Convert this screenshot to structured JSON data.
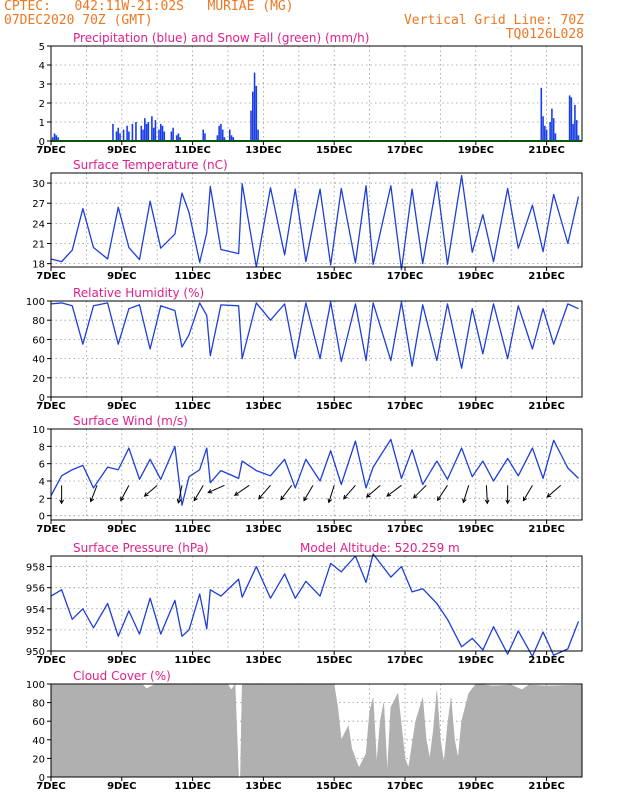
{
  "header": {
    "line1": "CPTEC:   042:11W-21:02S   MURIAE (MG)",
    "line2": "07DEC2020 70Z (GMT)",
    "grid_note": "Vertical Grid Line: 70Z",
    "code": "TQ0126L028"
  },
  "colors": {
    "header": "#ee7722",
    "title": "#e0208a",
    "precip": "#1a3ee6",
    "snow": "#1aa31a",
    "line": "#1f3fd8",
    "wind_arrow": "#000000",
    "cloud": "#b0b0b0"
  },
  "x_axis": {
    "ticks": [
      "7DEC",
      "9DEC",
      "11DEC",
      "13DEC",
      "15DEC",
      "17DEC",
      "19DEC",
      "21DEC"
    ],
    "start_day": 7,
    "end_day": 22
  },
  "chart_data": [
    {
      "id": "precip",
      "type": "bar",
      "title": "Precipitation (blue) and Snow Fall (green) (mm/h)",
      "ylim": [
        0,
        5
      ],
      "yticks": [
        "0",
        "1",
        "2",
        "3",
        "4",
        "5"
      ],
      "series": [
        {
          "name": "Precipitation",
          "color": "#1a3ee6",
          "x": [
            7.05,
            7.1,
            7.15,
            7.2,
            8.75,
            8.85,
            8.9,
            8.95,
            9.05,
            9.15,
            9.2,
            9.3,
            9.4,
            9.55,
            9.6,
            9.65,
            9.7,
            9.75,
            9.85,
            9.9,
            9.95,
            10.05,
            10.1,
            10.15,
            10.2,
            10.4,
            10.45,
            10.55,
            10.6,
            10.65,
            11.3,
            11.35,
            11.7,
            11.75,
            11.8,
            11.85,
            11.9,
            12.05,
            12.1,
            12.15,
            12.65,
            12.7,
            12.75,
            12.8,
            12.85,
            20.85,
            20.9,
            20.95,
            21.0,
            21.1,
            21.15,
            21.2,
            21.25,
            21.65,
            21.7,
            21.75,
            21.8,
            21.85,
            21.9
          ],
          "values": [
            0.2,
            0.4,
            0.3,
            0.2,
            0.9,
            0.5,
            0.7,
            0.4,
            0.6,
            0.8,
            0.5,
            0.9,
            1.0,
            0.8,
            0.6,
            1.2,
            0.9,
            1.0,
            1.3,
            0.7,
            1.1,
            0.6,
            0.9,
            0.8,
            0.5,
            0.5,
            0.7,
            0.3,
            0.4,
            0.2,
            0.6,
            0.4,
            0.3,
            0.8,
            0.9,
            0.6,
            0.2,
            0.6,
            0.3,
            0.2,
            1.6,
            2.6,
            3.6,
            2.9,
            0.6,
            2.8,
            1.3,
            0.8,
            0.6,
            1.0,
            1.7,
            1.2,
            0.4,
            2.4,
            2.3,
            0.9,
            1.9,
            1.1,
            0.3
          ]
        },
        {
          "name": "Snow Fall",
          "color": "#1aa31a",
          "x": [
            7,
            22
          ],
          "values": [
            0,
            0
          ]
        }
      ]
    },
    {
      "id": "temp",
      "type": "line",
      "title": "Surface Temperature (nC)",
      "ylim": [
        17.5,
        31.5
      ],
      "yticks": [
        "18",
        "21",
        "24",
        "27",
        "30"
      ],
      "x": [
        7.0,
        7.3,
        7.6,
        7.9,
        8.2,
        8.6,
        8.9,
        9.2,
        9.5,
        9.8,
        10.1,
        10.5,
        10.7,
        10.9,
        11.2,
        11.4,
        11.5,
        11.8,
        12.3,
        12.4,
        12.8,
        13.2,
        13.6,
        13.9,
        14.2,
        14.6,
        14.9,
        15.2,
        15.6,
        15.9,
        16.1,
        16.6,
        16.9,
        17.2,
        17.5,
        17.9,
        18.2,
        18.6,
        18.9,
        19.2,
        19.5,
        19.9,
        20.2,
        20.6,
        20.9,
        21.2,
        21.6,
        21.9
      ],
      "values": [
        18.7,
        18.3,
        20.0,
        26.2,
        20.4,
        18.7,
        26.4,
        20.4,
        18.6,
        27.3,
        20.3,
        22.4,
        28.5,
        25.6,
        18.2,
        22.6,
        29.5,
        20.1,
        19.5,
        29.9,
        17.5,
        29.3,
        19.3,
        29.1,
        18.3,
        29.1,
        17.8,
        29.2,
        18.1,
        29.6,
        17.9,
        29.6,
        17.1,
        29.1,
        18.0,
        30.2,
        17.9,
        31.1,
        19.7,
        25.3,
        18.3,
        29.2,
        20.3,
        26.7,
        19.8,
        28.3,
        21.0,
        28.0
      ]
    },
    {
      "id": "rh",
      "type": "line",
      "title": "Relative Humidity (%)",
      "ylim": [
        0,
        100
      ],
      "yticks": [
        "0",
        "20",
        "40",
        "60",
        "80",
        "100"
      ],
      "x": [
        7.0,
        7.3,
        7.6,
        7.9,
        8.2,
        8.6,
        8.9,
        9.2,
        9.5,
        9.8,
        10.1,
        10.5,
        10.7,
        10.9,
        11.2,
        11.4,
        11.5,
        11.8,
        12.3,
        12.4,
        12.8,
        13.2,
        13.6,
        13.9,
        14.2,
        14.6,
        14.9,
        15.2,
        15.6,
        15.9,
        16.1,
        16.6,
        16.9,
        17.2,
        17.5,
        17.9,
        18.2,
        18.6,
        18.9,
        19.2,
        19.5,
        19.9,
        20.2,
        20.6,
        20.9,
        21.2,
        21.6,
        21.9
      ],
      "values": [
        97,
        98,
        95,
        55,
        95,
        98,
        55,
        92,
        96,
        50,
        95,
        90,
        52,
        65,
        98,
        85,
        43,
        96,
        95,
        40,
        98,
        80,
        97,
        40,
        98,
        40,
        99,
        37,
        97,
        38,
        98,
        38,
        99,
        32,
        96,
        38,
        97,
        30,
        92,
        45,
        97,
        40,
        95,
        50,
        92,
        55,
        97,
        92
      ]
    },
    {
      "id": "wind",
      "type": "line",
      "title": "Surface Wind (m/s)",
      "ylim": [
        -0.5,
        10
      ],
      "yticks": [
        "0",
        "2",
        "4",
        "6",
        "8",
        "10"
      ],
      "x": [
        7.0,
        7.3,
        7.6,
        7.9,
        8.2,
        8.6,
        8.9,
        9.2,
        9.5,
        9.8,
        10.1,
        10.5,
        10.7,
        10.9,
        11.2,
        11.4,
        11.5,
        11.8,
        12.3,
        12.4,
        12.8,
        13.2,
        13.6,
        13.9,
        14.2,
        14.6,
        14.9,
        15.2,
        15.6,
        15.9,
        16.1,
        16.6,
        16.9,
        17.2,
        17.5,
        17.9,
        18.2,
        18.6,
        18.9,
        19.2,
        19.5,
        19.9,
        20.2,
        20.6,
        20.9,
        21.2,
        21.6,
        21.9
      ],
      "values": [
        2.3,
        4.6,
        5.3,
        5.8,
        3.2,
        5.6,
        5.3,
        7.8,
        4.2,
        6.5,
        4.2,
        8.0,
        1.2,
        4.5,
        5.3,
        7.8,
        3.8,
        5.2,
        4.3,
        6.3,
        5.2,
        4.6,
        6.5,
        3.2,
        6.5,
        4.0,
        7.5,
        3.6,
        8.6,
        3.2,
        5.6,
        8.8,
        4.3,
        7.6,
        3.6,
        6.3,
        4.2,
        7.8,
        4.5,
        6.3,
        4.0,
        6.6,
        4.6,
        7.8,
        4.3,
        8.7,
        5.5,
        4.3
      ],
      "arrows": {
        "x": [
          7.3,
          8.3,
          9.2,
          10.0,
          10.7,
          11.3,
          11.9,
          12.6,
          13.2,
          13.8,
          14.4,
          15.0,
          15.6,
          16.3,
          16.9,
          17.6,
          18.2,
          18.8,
          19.3,
          19.9,
          20.6,
          21.4
        ],
        "u": [
          0,
          -0.35,
          -0.45,
          -0.7,
          -0.2,
          -0.5,
          -0.9,
          -0.8,
          -0.65,
          -0.6,
          -0.5,
          -0.3,
          -0.65,
          -0.75,
          -0.8,
          -0.7,
          -0.55,
          -0.3,
          0.05,
          0,
          -0.5,
          -0.75
        ],
        "v": [
          -1,
          -0.9,
          -0.85,
          -0.6,
          -0.97,
          -0.85,
          -0.4,
          -0.55,
          -0.75,
          -0.8,
          -0.85,
          -0.95,
          -0.75,
          -0.65,
          -0.6,
          -0.7,
          -0.83,
          -0.95,
          -1,
          -1,
          -0.85,
          -0.65
        ]
      }
    },
    {
      "id": "pres",
      "type": "line",
      "title": "Surface Pressure (hPa)",
      "annotation": "Model Altitude: 520.259  m",
      "ylim": [
        950,
        959
      ],
      "yticks": [
        "950",
        "952",
        "954",
        "956",
        "958"
      ],
      "x": [
        7.0,
        7.3,
        7.6,
        7.9,
        8.2,
        8.6,
        8.9,
        9.2,
        9.5,
        9.8,
        10.1,
        10.5,
        10.7,
        10.9,
        11.2,
        11.4,
        11.5,
        11.8,
        12.3,
        12.4,
        12.8,
        13.2,
        13.6,
        13.9,
        14.2,
        14.6,
        14.9,
        15.2,
        15.6,
        15.9,
        16.1,
        16.6,
        16.9,
        17.2,
        17.5,
        17.9,
        18.2,
        18.6,
        18.9,
        19.2,
        19.5,
        19.9,
        20.2,
        20.6,
        20.9,
        21.2,
        21.6,
        21.9
      ],
      "values": [
        955.2,
        955.8,
        953.0,
        954.0,
        952.2,
        954.5,
        951.4,
        953.8,
        951.6,
        955.0,
        951.6,
        954.8,
        951.4,
        952.0,
        955.4,
        952.1,
        955.8,
        955.2,
        956.8,
        955.1,
        958.0,
        955.0,
        957.3,
        955.0,
        956.6,
        955.2,
        958.3,
        957.5,
        959.0,
        956.5,
        959.2,
        957.0,
        958.0,
        955.6,
        955.9,
        954.5,
        953.0,
        950.4,
        951.2,
        950.1,
        952.3,
        949.7,
        951.9,
        949.5,
        951.8,
        949.6,
        950.2,
        952.8
      ]
    },
    {
      "id": "cloud",
      "type": "area",
      "title": "Cloud Cover (%)",
      "ylim": [
        0,
        100
      ],
      "yticks": [
        "0",
        "20",
        "40",
        "60",
        "80",
        "100"
      ],
      "x": [
        7.0,
        9.6,
        9.7,
        9.9,
        10.0,
        12.0,
        12.1,
        12.2,
        12.3,
        12.35,
        12.4,
        15.0,
        15.1,
        15.2,
        15.4,
        15.5,
        15.7,
        15.9,
        16.0,
        16.1,
        16.2,
        16.3,
        16.4,
        16.5,
        16.6,
        16.8,
        17.0,
        17.1,
        17.3,
        17.5,
        17.6,
        17.7,
        17.8,
        17.9,
        18.0,
        18.1,
        18.2,
        18.3,
        18.4,
        18.5,
        18.6,
        18.8,
        19.0,
        19.5,
        20.0,
        20.3,
        20.5,
        21.0,
        22.0
      ],
      "values": [
        99,
        99,
        95,
        99,
        99,
        99,
        94,
        100,
        0,
        0,
        99,
        99,
        75,
        40,
        55,
        30,
        10,
        25,
        70,
        85,
        15,
        60,
        80,
        5,
        75,
        90,
        20,
        10,
        60,
        85,
        40,
        20,
        50,
        92,
        40,
        15,
        55,
        85,
        40,
        20,
        60,
        90,
        100,
        98,
        99,
        94,
        99,
        98,
        99
      ]
    }
  ]
}
